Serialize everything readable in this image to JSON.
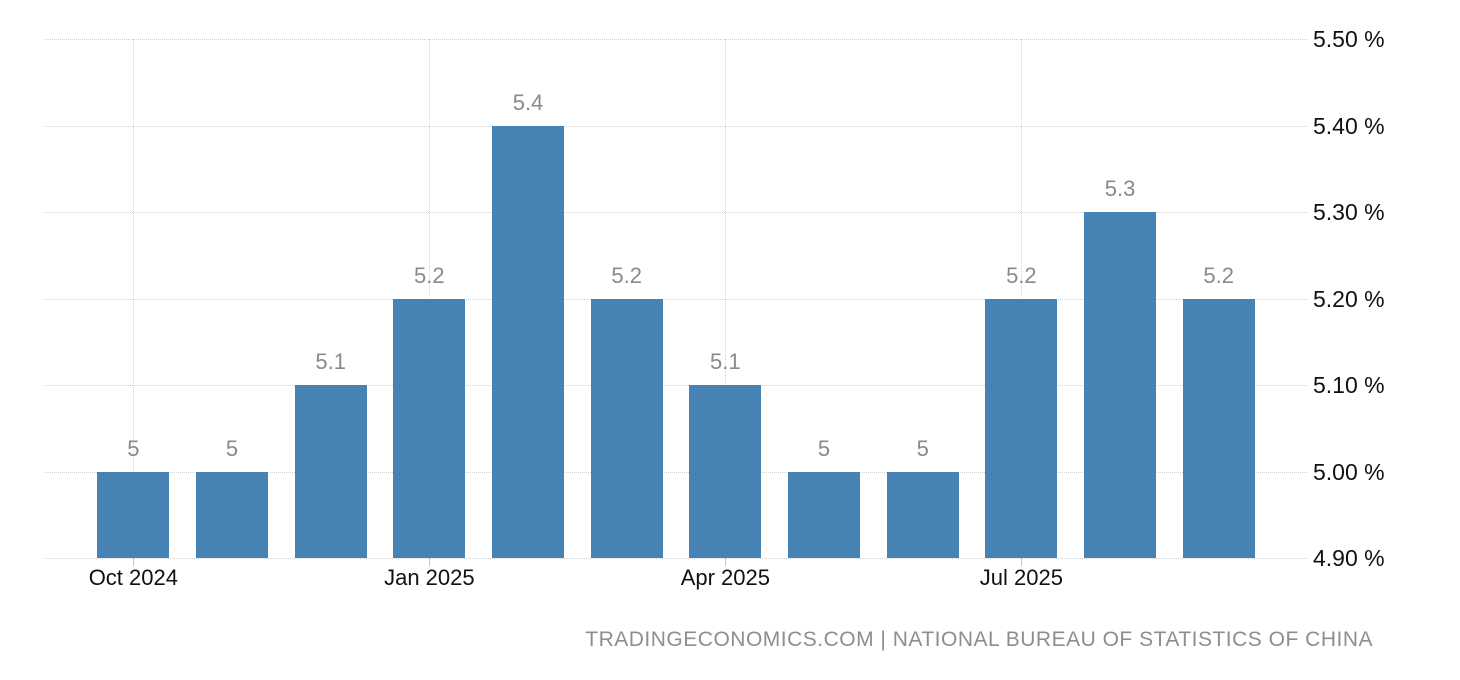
{
  "chart_data": {
    "type": "bar",
    "categories": [
      "Oct 2024",
      "Nov 2024",
      "Dec 2024",
      "Jan 2025",
      "Feb 2025",
      "Mar 2025",
      "Apr 2025",
      "May 2025",
      "Jun 2025",
      "Jul 2025",
      "Aug 2025",
      "Sep 2025"
    ],
    "values": [
      5.0,
      5.0,
      5.1,
      5.2,
      5.4,
      5.2,
      5.1,
      5.0,
      5.0,
      5.2,
      5.3,
      5.2
    ],
    "bar_labels": [
      "5",
      "5",
      "5.1",
      "5.2",
      "5.4",
      "5.2",
      "5.1",
      "5",
      "5",
      "5.2",
      "5.3",
      "5.2"
    ],
    "x_axis": {
      "tick_labels": [
        "Oct 2024",
        "Jan 2025",
        "Apr 2025",
        "Jul 2025"
      ],
      "tick_bar_indices": [
        0,
        3,
        6,
        9
      ]
    },
    "y_axis": {
      "side": "right",
      "min": 4.9,
      "max": 5.5,
      "step": 0.1,
      "tick_labels": [
        "5.50 %",
        "5.40 %",
        "5.30 %",
        "5.20 %",
        "5.10 %",
        "5.00 %",
        "4.90 %"
      ]
    },
    "ylim": [
      4.9,
      5.5
    ],
    "grid": {
      "style": "dotted",
      "color": "#d2d2d2"
    },
    "legend": "none",
    "colors": {
      "bar": "#4682b4",
      "bar_label": "#8a8a8a",
      "axis_label": "#111111",
      "grid": "#d2d2d2",
      "footer": "#8e8e8e"
    }
  },
  "footer": {
    "text": "TRADINGECONOMICS.COM | NATIONAL BUREAU OF STATISTICS OF CHINA"
  }
}
